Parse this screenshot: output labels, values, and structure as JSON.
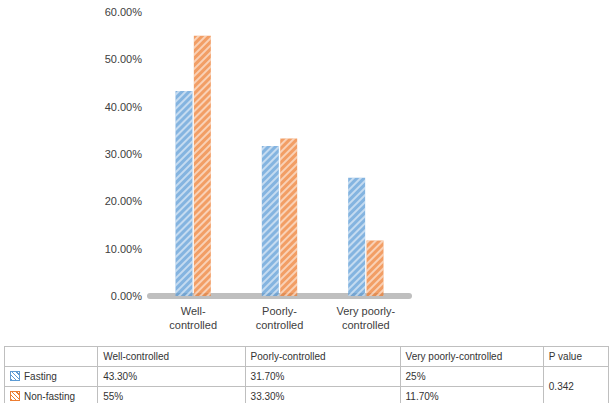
{
  "chart_data": {
    "type": "bar",
    "categories": [
      "Well-controlled",
      "Poorly-controlled",
      "Very poorly-controlled"
    ],
    "series": [
      {
        "name": "Fasting",
        "color": "#5b9bd5",
        "values": [
          43.3,
          31.7,
          25
        ],
        "value_labels": [
          "43.30%",
          "31.70%",
          "25%"
        ]
      },
      {
        "name": "Non-fasting",
        "color": "#ed7d31",
        "values": [
          55,
          33.3,
          11.7
        ],
        "value_labels": [
          "55%",
          "33.30%",
          "11.70%"
        ]
      }
    ],
    "ylim": [
      0,
      60
    ],
    "yticks": [
      {
        "value": 0,
        "label": "0.00%"
      },
      {
        "value": 10,
        "label": "10.00%"
      },
      {
        "value": 20,
        "label": "20.00%"
      },
      {
        "value": 30,
        "label": "30.00%"
      },
      {
        "value": 40,
        "label": "40.00%"
      },
      {
        "value": 50,
        "label": "50.00%"
      },
      {
        "value": 60,
        "label": "60.00%"
      }
    ],
    "grid": false,
    "data_labels": false,
    "legend": "bottom",
    "table": {
      "p_value_label": "P value",
      "p_value": 0.342
    }
  }
}
